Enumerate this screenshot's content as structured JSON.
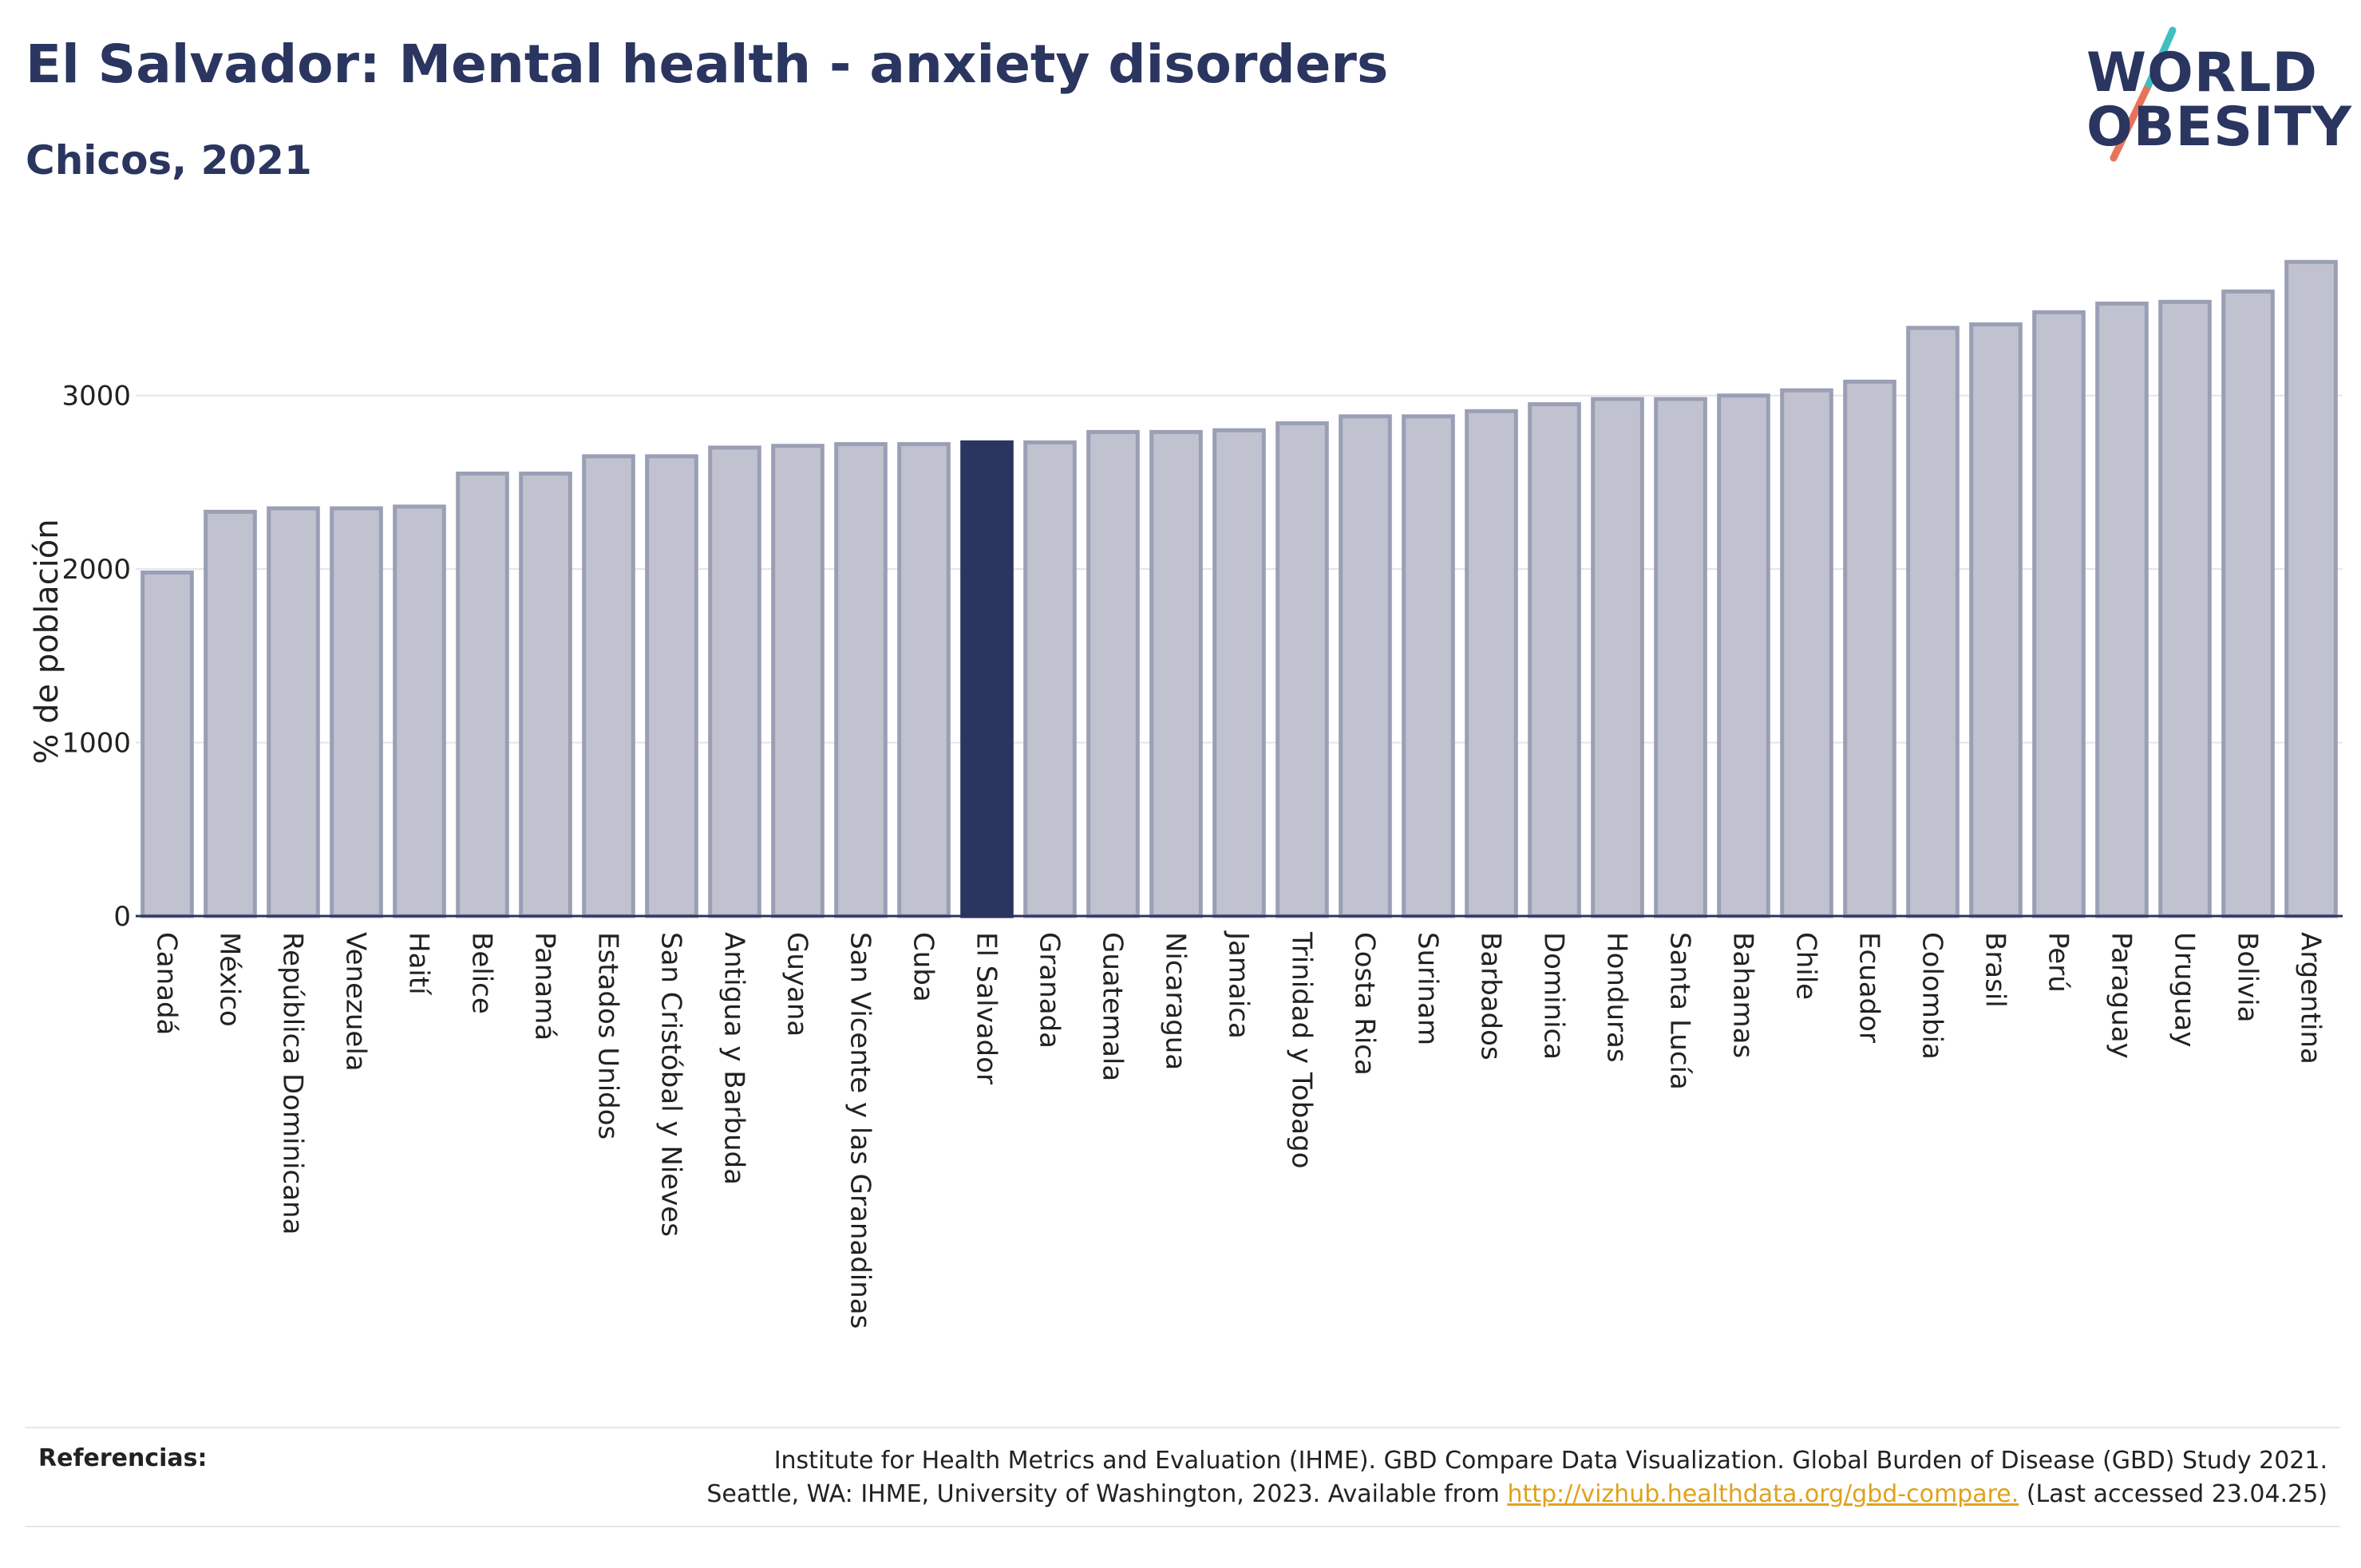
{
  "header": {
    "title": "El Salvador: Mental health - anxiety disorders",
    "subtitle": "Chicos, 2021"
  },
  "logo": {
    "line1": "WORLD",
    "line2": "OBESITY"
  },
  "footer": {
    "ref_label": "Referencias:",
    "ref_line1": "Institute for Health Metrics and Evaluation (IHME). GBD Compare Data Visualization. Global Burden of Disease (GBD) Study 2021.",
    "ref_line2_pre": "Seattle, WA: IHME, University of Washington, 2023. Available from ",
    "ref_link": "http://vizhub.healthdata.org/gbd-compare.",
    "ref_line2_post": " (Last accessed 23.04.25)"
  },
  "colors": {
    "bar": "#c0c3cf",
    "bar_border": "#9a9fb5",
    "highlight": "#2a3560",
    "grid": "#e3e4e8",
    "link": "#e0a21b",
    "logo_teal": "#3fbfbf",
    "logo_coral": "#e8735a"
  },
  "chart_data": {
    "type": "bar",
    "ylabel": "% de población",
    "xlabel": "",
    "ylim": [
      0,
      3900
    ],
    "yticks": [
      0,
      1000,
      2000,
      3000
    ],
    "grid": true,
    "highlight": "El Salvador",
    "categories": [
      "Canadá",
      "México",
      "República Dominicana",
      "Venezuela",
      "Haití",
      "Belice",
      "Panamá",
      "Estados Unidos",
      "San Cristóbal y Nieves",
      "Antigua y Barbuda",
      "Guyana",
      "San Vicente y las Granadinas",
      "Cuba",
      "El Salvador",
      "Granada",
      "Guatemala",
      "Nicaragua",
      "Jamaica",
      "Trinidad y Tobago",
      "Costa Rica",
      "Surinam",
      "Barbados",
      "Dominica",
      "Honduras",
      "Santa Lucía",
      "Bahamas",
      "Chile",
      "Ecuador",
      "Colombia",
      "Brasil",
      "Perú",
      "Paraguay",
      "Uruguay",
      "Bolivia",
      "Argentina"
    ],
    "values": [
      1980,
      2330,
      2350,
      2350,
      2360,
      2550,
      2550,
      2650,
      2650,
      2700,
      2710,
      2720,
      2720,
      2730,
      2730,
      2790,
      2790,
      2800,
      2840,
      2880,
      2880,
      2910,
      2950,
      2980,
      2980,
      3000,
      3030,
      3080,
      3390,
      3410,
      3480,
      3530,
      3540,
      3600,
      3770
    ]
  }
}
